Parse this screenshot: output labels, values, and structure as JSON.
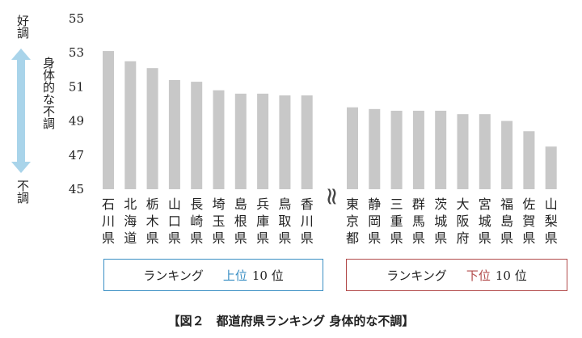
{
  "chart_data": {
    "type": "bar",
    "ylim": [
      45,
      55
    ],
    "yticks": [
      "55",
      "53",
      "51",
      "49",
      "47",
      "45"
    ],
    "bar_color": "#c8c8c8",
    "groups": [
      {
        "categories": [
          "石川県",
          "北海道",
          "栃木県",
          "山口県",
          "長崎県",
          "埼玉県",
          "島根県",
          "兵庫県",
          "鳥取県",
          "香川県"
        ],
        "values": [
          53.1,
          52.5,
          52.1,
          51.4,
          51.3,
          50.8,
          50.6,
          50.6,
          50.5,
          50.5
        ]
      },
      {
        "categories": [
          "東京都",
          "静岡県",
          "三重県",
          "群馬県",
          "茨城県",
          "大阪府",
          "宮城県",
          "福島県",
          "佐賀県",
          "山梨県"
        ],
        "values": [
          49.8,
          49.7,
          49.6,
          49.6,
          49.6,
          49.4,
          49.4,
          49.0,
          48.4,
          47.5
        ]
      }
    ],
    "y_top_label": "好調",
    "y_bottom_label": "不調",
    "y_axis_arrow_label": "身体的な不調",
    "axis_break_symbol": "≈"
  },
  "boxes": {
    "top": {
      "label": "ランキング",
      "highlight": "上位",
      "count": "10 位",
      "color": "#3a8fc4"
    },
    "bottom": {
      "label": "ランキング",
      "highlight": "下位",
      "count": "10 位",
      "color": "#b24a4a"
    }
  },
  "caption": "【図２　都道府県ランキング 身体的な不調】",
  "colors": {
    "arrow": "#a9d4ea",
    "text": "#222222"
  }
}
